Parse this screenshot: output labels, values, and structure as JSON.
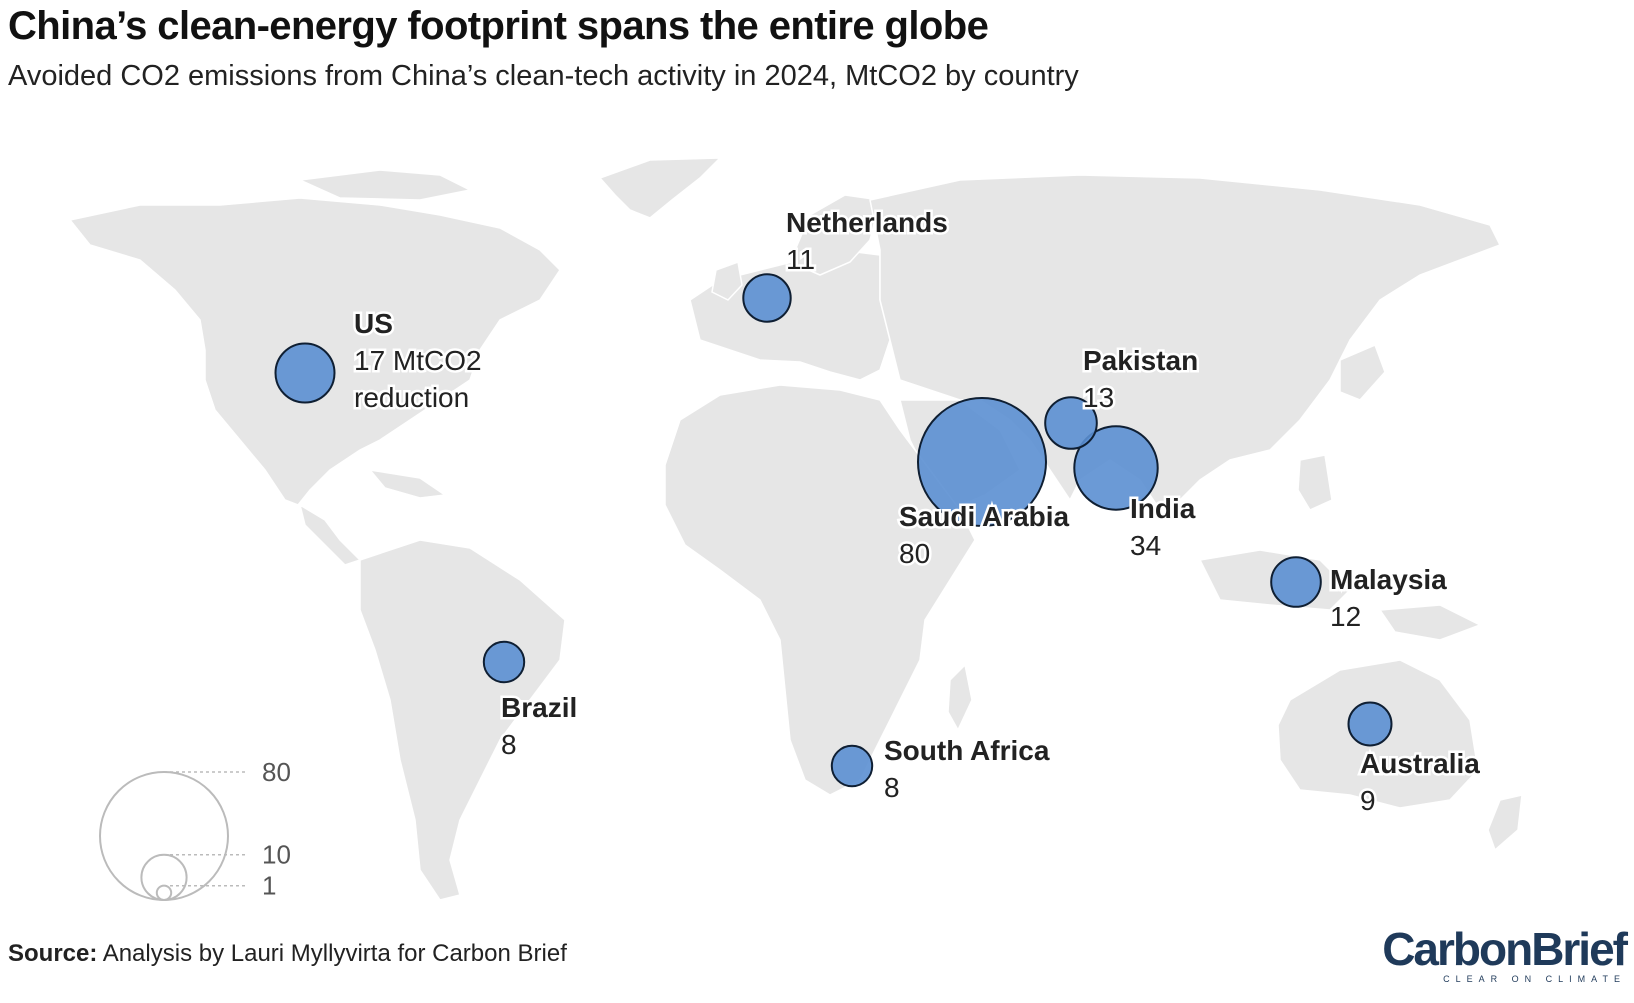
{
  "title": "China’s clean-energy footprint spans the entire globe",
  "subtitle": "Avoided CO2 emissions from China’s clean-tech activity in 2024, MtCO2 by country",
  "source_label": "Source:",
  "source_text": " Analysis by Lauri Myllyvirta for Carbon Brief",
  "logo": {
    "main": "CarbonBrief",
    "tagline": "CLEAR ON CLIMATE"
  },
  "colors": {
    "land": "#e6e6e6",
    "border": "#ffffff",
    "bubble_fill": "#5b8fd1",
    "bubble_stroke": "#0f1f33",
    "legend": "#bbbbbb"
  },
  "legend": {
    "values": [
      80,
      10,
      1
    ]
  },
  "labels": [
    {
      "country": "US",
      "value": "17 MtCO2",
      "extra": "reduction"
    },
    {
      "country": "Netherlands",
      "value": "11"
    },
    {
      "country": "Pakistan",
      "value": "13"
    },
    {
      "country": "Saudi Arabia",
      "value": "80"
    },
    {
      "country": "India",
      "value": "34"
    },
    {
      "country": "Malaysia",
      "value": "12"
    },
    {
      "country": "Brazil",
      "value": "8"
    },
    {
      "country": "South Africa",
      "value": "8"
    },
    {
      "country": "Australia",
      "value": "9"
    }
  ],
  "bubbles": [
    {
      "country": "Saudi Arabia",
      "value": 80
    },
    {
      "country": "India",
      "value": 34
    },
    {
      "country": "US",
      "value": 17
    },
    {
      "country": "Pakistan",
      "value": 13
    },
    {
      "country": "Malaysia",
      "value": 12
    },
    {
      "country": "Netherlands",
      "value": 11
    },
    {
      "country": "Australia",
      "value": 9
    },
    {
      "country": "Brazil",
      "value": 8
    },
    {
      "country": "South Africa",
      "value": 8
    }
  ]
}
